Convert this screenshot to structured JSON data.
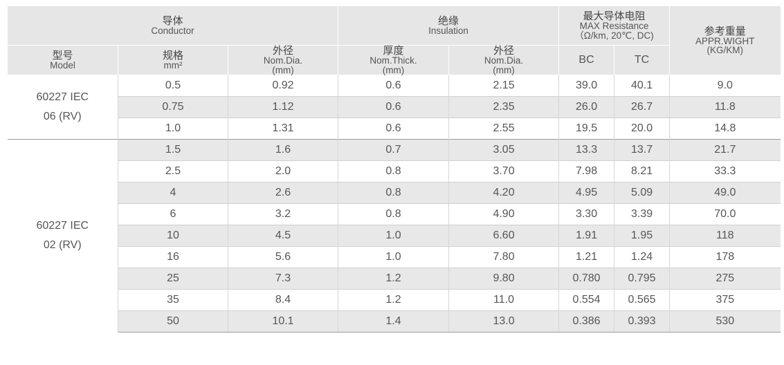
{
  "header": {
    "conductor": {
      "zh": "导体",
      "en": "Conductor"
    },
    "insulation": {
      "zh": "绝缘",
      "en": "Insulation"
    },
    "max_resistance": {
      "zh": "最大导体电阻",
      "en": "MAX Resistance",
      "unit": "（Ω/km, 20℃, DC)"
    },
    "weight": {
      "zh": "参考重量",
      "en": "APPR.WIGHT",
      "unit": "(KG/KM)"
    },
    "model": {
      "zh": "型号",
      "en": "Model"
    },
    "spec": {
      "zh": "规格",
      "unit": "mm²"
    },
    "conductor_dia": {
      "zh": "外径",
      "en": "Nom.Dia.",
      "unit": "(mm)"
    },
    "thickness": {
      "zh": "厚度",
      "en": "Nom.Thick.",
      "unit": "(mm)"
    },
    "insulation_dia": {
      "zh": "外径",
      "en": "Nom.Dia.",
      "unit": "(mm)"
    },
    "bc": "BC",
    "tc": "TC"
  },
  "groups": [
    {
      "model_line1": "60227 IEC",
      "model_line2": "06 (RV)",
      "rows": [
        {
          "spec": "0.5",
          "cdia": "0.92",
          "thick": "0.6",
          "idia": "2.15",
          "bc": "39.0",
          "tc": "40.1",
          "weight": "9.0"
        },
        {
          "spec": "0.75",
          "cdia": "1.12",
          "thick": "0.6",
          "idia": "2.35",
          "bc": "26.0",
          "tc": "26.7",
          "weight": "11.8"
        },
        {
          "spec": "1.0",
          "cdia": "1.31",
          "thick": "0.6",
          "idia": "2.55",
          "bc": "19.5",
          "tc": "20.0",
          "weight": "14.8"
        }
      ]
    },
    {
      "model_line1": "60227 IEC",
      "model_line2": "02 (RV)",
      "rows": [
        {
          "spec": "1.5",
          "cdia": "1.6",
          "thick": "0.7",
          "idia": "3.05",
          "bc": "13.3",
          "tc": "13.7",
          "weight": "21.7"
        },
        {
          "spec": "2.5",
          "cdia": "2.0",
          "thick": "0.8",
          "idia": "3.70",
          "bc": "7.98",
          "tc": "8.21",
          "weight": "33.3"
        },
        {
          "spec": "4",
          "cdia": "2.6",
          "thick": "0.8",
          "idia": "4.20",
          "bc": "4.95",
          "tc": "5.09",
          "weight": "49.0"
        },
        {
          "spec": "6",
          "cdia": "3.2",
          "thick": "0.8",
          "idia": "4.90",
          "bc": "3.30",
          "tc": "3.39",
          "weight": "70.0"
        },
        {
          "spec": "10",
          "cdia": "4.5",
          "thick": "1.0",
          "idia": "6.60",
          "bc": "1.91",
          "tc": "1.95",
          "weight": "118"
        },
        {
          "spec": "16",
          "cdia": "5.6",
          "thick": "1.0",
          "idia": "7.80",
          "bc": "1.21",
          "tc": "1.24",
          "weight": "178"
        },
        {
          "spec": "25",
          "cdia": "7.3",
          "thick": "1.2",
          "idia": "9.80",
          "bc": "0.780",
          "tc": "0.795",
          "weight": "275"
        },
        {
          "spec": "35",
          "cdia": "8.4",
          "thick": "1.2",
          "idia": "11.0",
          "bc": "0.554",
          "tc": "0.565",
          "weight": "375"
        },
        {
          "spec": "50",
          "cdia": "10.1",
          "thick": "1.4",
          "idia": "13.0",
          "bc": "0.386",
          "tc": "0.393",
          "weight": "530"
        }
      ]
    }
  ]
}
